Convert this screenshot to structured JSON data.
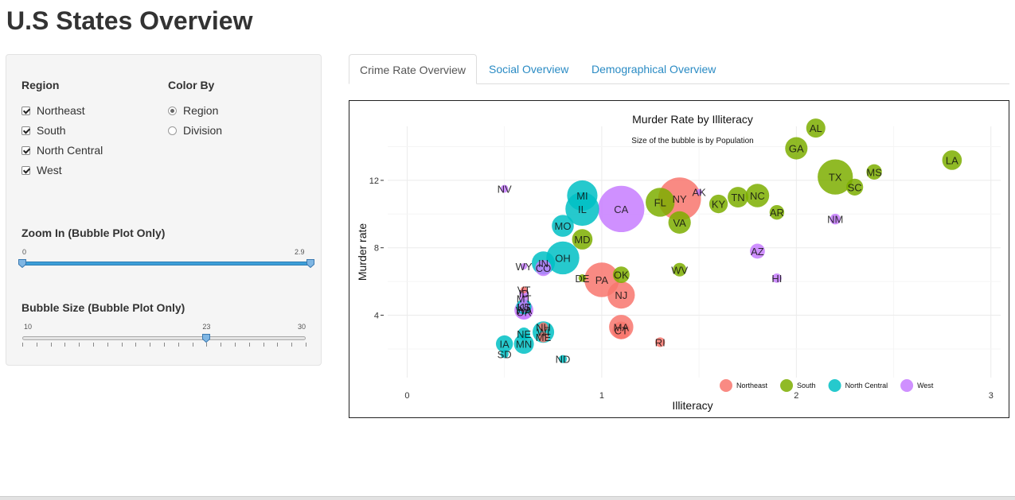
{
  "page": {
    "title": "U.S States Overview"
  },
  "sidebar": {
    "region_label": "Region",
    "regions": [
      {
        "label": "Northeast",
        "checked": true
      },
      {
        "label": "South",
        "checked": true
      },
      {
        "label": "North Central",
        "checked": true
      },
      {
        "label": "West",
        "checked": true
      }
    ],
    "color_by_label": "Color By",
    "color_by_options": [
      {
        "label": "Region",
        "selected": true
      },
      {
        "label": "Division",
        "selected": false
      }
    ],
    "zoom": {
      "label": "Zoom In (Bubble Plot Only)",
      "min": "0",
      "max": "2.9",
      "from": 0,
      "to": 2.9,
      "range": [
        0,
        2.9
      ]
    },
    "bubble": {
      "label": "Bubble Size (Bubble Plot Only)",
      "min": "10",
      "max": "30",
      "value_label": "23",
      "value": 23,
      "range": [
        10,
        30
      ]
    }
  },
  "tabs": [
    {
      "label": "Crime Rate Overview",
      "active": true
    },
    {
      "label": "Social Overview",
      "active": false
    },
    {
      "label": "Demographical Overview",
      "active": false
    }
  ],
  "chart_data": {
    "type": "scatter",
    "title": "Murder Rate by Illiteracy",
    "subtitle": "Size of the bubble is by Population",
    "xlabel": "Illiteracy",
    "ylabel": "Murder rate",
    "xlim": [
      -0.1,
      3.05
    ],
    "ylim": [
      0.3,
      15.2
    ],
    "xticks": [
      "0",
      "1",
      "2",
      "3"
    ],
    "xtick_values": [
      0,
      1,
      2,
      3
    ],
    "yticks": [
      "4",
      "8",
      "12"
    ],
    "ytick_values": [
      4,
      8,
      12
    ],
    "grid": true,
    "legend_placement": "bottom-right",
    "legend": [
      {
        "name": "Northeast",
        "color": "#f8766d"
      },
      {
        "name": "South",
        "color": "#7cae00"
      },
      {
        "name": "North Central",
        "color": "#00bfc4"
      },
      {
        "name": "West",
        "color": "#c77cff"
      }
    ],
    "points": [
      {
        "label": "AL",
        "x": 2.1,
        "y": 15.1,
        "pop": 3615,
        "region": "South"
      },
      {
        "label": "AK",
        "x": 1.5,
        "y": 11.3,
        "pop": 365,
        "region": "West"
      },
      {
        "label": "AZ",
        "x": 1.8,
        "y": 7.8,
        "pop": 2212,
        "region": "West"
      },
      {
        "label": "AR",
        "x": 1.9,
        "y": 10.1,
        "pop": 2110,
        "region": "South"
      },
      {
        "label": "CA",
        "x": 1.1,
        "y": 10.3,
        "pop": 21198,
        "region": "West"
      },
      {
        "label": "CO",
        "x": 0.7,
        "y": 6.8,
        "pop": 2541,
        "region": "West"
      },
      {
        "label": "CT",
        "x": 1.1,
        "y": 3.1,
        "pop": 3100,
        "region": "Northeast"
      },
      {
        "label": "DE",
        "x": 0.9,
        "y": 6.2,
        "pop": 579,
        "region": "South"
      },
      {
        "label": "FL",
        "x": 1.3,
        "y": 10.7,
        "pop": 8277,
        "region": "South"
      },
      {
        "label": "GA",
        "x": 2.0,
        "y": 13.9,
        "pop": 4931,
        "region": "South"
      },
      {
        "label": "HI",
        "x": 1.9,
        "y": 6.2,
        "pop": 868,
        "region": "West"
      },
      {
        "label": "ID",
        "x": 0.6,
        "y": 5.3,
        "pop": 813,
        "region": "West"
      },
      {
        "label": "IL",
        "x": 0.9,
        "y": 10.3,
        "pop": 11197,
        "region": "North Central"
      },
      {
        "label": "IN",
        "x": 0.7,
        "y": 7.1,
        "pop": 5313,
        "region": "North Central"
      },
      {
        "label": "IA",
        "x": 0.5,
        "y": 2.3,
        "pop": 2861,
        "region": "North Central"
      },
      {
        "label": "KS",
        "x": 0.6,
        "y": 4.5,
        "pop": 2280,
        "region": "North Central"
      },
      {
        "label": "KY",
        "x": 1.6,
        "y": 10.6,
        "pop": 3387,
        "region": "South"
      },
      {
        "label": "LA",
        "x": 2.8,
        "y": 13.2,
        "pop": 3806,
        "region": "South"
      },
      {
        "label": "ME",
        "x": 0.7,
        "y": 2.7,
        "pop": 1058,
        "region": "Northeast"
      },
      {
        "label": "MD",
        "x": 0.9,
        "y": 8.5,
        "pop": 4122,
        "region": "South"
      },
      {
        "label": "MA",
        "x": 1.1,
        "y": 3.3,
        "pop": 5814,
        "region": "Northeast"
      },
      {
        "label": "MI",
        "x": 0.9,
        "y": 11.1,
        "pop": 9111,
        "region": "North Central"
      },
      {
        "label": "MN",
        "x": 0.6,
        "y": 2.3,
        "pop": 3921,
        "region": "North Central"
      },
      {
        "label": "MS",
        "x": 2.4,
        "y": 12.5,
        "pop": 2341,
        "region": "South"
      },
      {
        "label": "MO",
        "x": 0.8,
        "y": 9.3,
        "pop": 4767,
        "region": "North Central"
      },
      {
        "label": "MT",
        "x": 0.6,
        "y": 5.0,
        "pop": 746,
        "region": "West"
      },
      {
        "label": "NE",
        "x": 0.6,
        "y": 2.9,
        "pop": 1544,
        "region": "North Central"
      },
      {
        "label": "NV",
        "x": 0.5,
        "y": 11.5,
        "pop": 590,
        "region": "West"
      },
      {
        "label": "NH",
        "x": 0.7,
        "y": 3.3,
        "pop": 812,
        "region": "Northeast"
      },
      {
        "label": "NJ",
        "x": 1.1,
        "y": 5.2,
        "pop": 7333,
        "region": "Northeast"
      },
      {
        "label": "NM",
        "x": 2.2,
        "y": 9.7,
        "pop": 1144,
        "region": "West"
      },
      {
        "label": "NY",
        "x": 1.4,
        "y": 10.9,
        "pop": 18076,
        "region": "Northeast"
      },
      {
        "label": "NC",
        "x": 1.8,
        "y": 11.1,
        "pop": 5441,
        "region": "South"
      },
      {
        "label": "ND",
        "x": 0.8,
        "y": 1.4,
        "pop": 637,
        "region": "North Central"
      },
      {
        "label": "OH",
        "x": 0.8,
        "y": 7.4,
        "pop": 10735,
        "region": "North Central"
      },
      {
        "label": "OK",
        "x": 1.1,
        "y": 6.4,
        "pop": 2715,
        "region": "South"
      },
      {
        "label": "OR",
        "x": 0.6,
        "y": 4.2,
        "pop": 2284,
        "region": "West"
      },
      {
        "label": "PA",
        "x": 1.0,
        "y": 6.1,
        "pop": 11860,
        "region": "Northeast"
      },
      {
        "label": "RI",
        "x": 1.3,
        "y": 2.4,
        "pop": 931,
        "region": "Northeast"
      },
      {
        "label": "SC",
        "x": 2.3,
        "y": 11.6,
        "pop": 2816,
        "region": "South"
      },
      {
        "label": "SD",
        "x": 0.5,
        "y": 1.7,
        "pop": 681,
        "region": "North Central"
      },
      {
        "label": "TN",
        "x": 1.7,
        "y": 11.0,
        "pop": 4173,
        "region": "South"
      },
      {
        "label": "TX",
        "x": 2.2,
        "y": 12.2,
        "pop": 12237,
        "region": "South"
      },
      {
        "label": "UT",
        "x": 0.6,
        "y": 4.5,
        "pop": 1203,
        "region": "West"
      },
      {
        "label": "VT",
        "x": 0.6,
        "y": 5.5,
        "pop": 472,
        "region": "Northeast"
      },
      {
        "label": "VA",
        "x": 1.4,
        "y": 9.5,
        "pop": 4981,
        "region": "South"
      },
      {
        "label": "WA",
        "x": 0.6,
        "y": 4.3,
        "pop": 3559,
        "region": "West"
      },
      {
        "label": "WV",
        "x": 1.4,
        "y": 6.7,
        "pop": 1799,
        "region": "South"
      },
      {
        "label": "WI",
        "x": 0.7,
        "y": 3.0,
        "pop": 4589,
        "region": "North Central"
      },
      {
        "label": "WY",
        "x": 0.6,
        "y": 6.9,
        "pop": 376,
        "region": "West"
      }
    ]
  }
}
